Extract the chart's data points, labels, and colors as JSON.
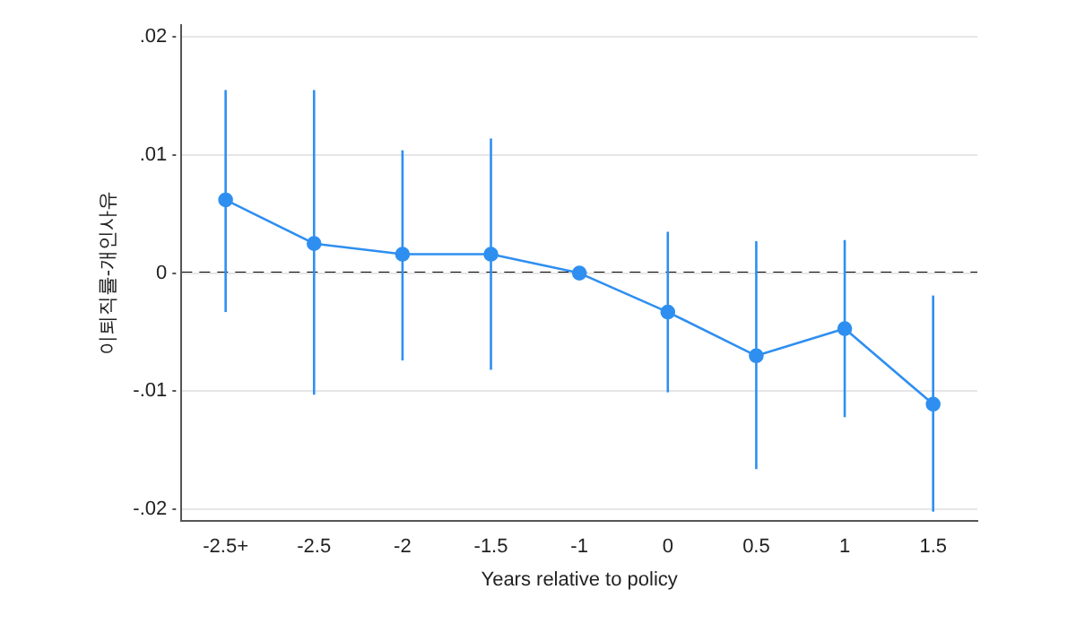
{
  "chart_data": {
    "type": "line",
    "ylabel": "이퇴직률-개인사유",
    "xlabel": "Years relative to policy",
    "categories": [
      "-2.5+",
      "-2.5",
      "-2",
      "-1.5",
      "-1",
      "0",
      "0.5",
      "1",
      "1.5"
    ],
    "series": [
      {
        "color": "#2e8ff0",
        "values": [
          0.0062,
          0.0025,
          0.0016,
          0.0016,
          0,
          -0.0033,
          -0.007,
          -0.0047,
          -0.0111
        ],
        "errors": [
          [
            -0.0033,
            0.0155
          ],
          [
            -0.0103,
            0.0155
          ],
          [
            -0.0074,
            0.0104
          ],
          [
            -0.0082,
            0.0114
          ],
          null,
          [
            -0.0101,
            0.0035
          ],
          [
            -0.0166,
            0.0027
          ],
          [
            -0.0122,
            0.0028
          ],
          [
            -0.0202,
            -0.0019
          ]
        ]
      }
    ],
    "ylim": [
      -0.021,
      0.021
    ],
    "yticks": [
      {
        "value": 0.02,
        "label": ".02"
      },
      {
        "value": 0.01,
        "label": ".01"
      },
      0,
      {
        "value": -0.01,
        "label": "-.01"
      },
      {
        "value": -0.02,
        "label": "-.02"
      }
    ],
    "grid": "y",
    "marker": "circle",
    "line_style": "solid",
    "legend": false,
    "ref_lines": [
      {
        "axis": "y",
        "value": 0,
        "color": "#000000",
        "line_style": "dashed"
      }
    ]
  }
}
